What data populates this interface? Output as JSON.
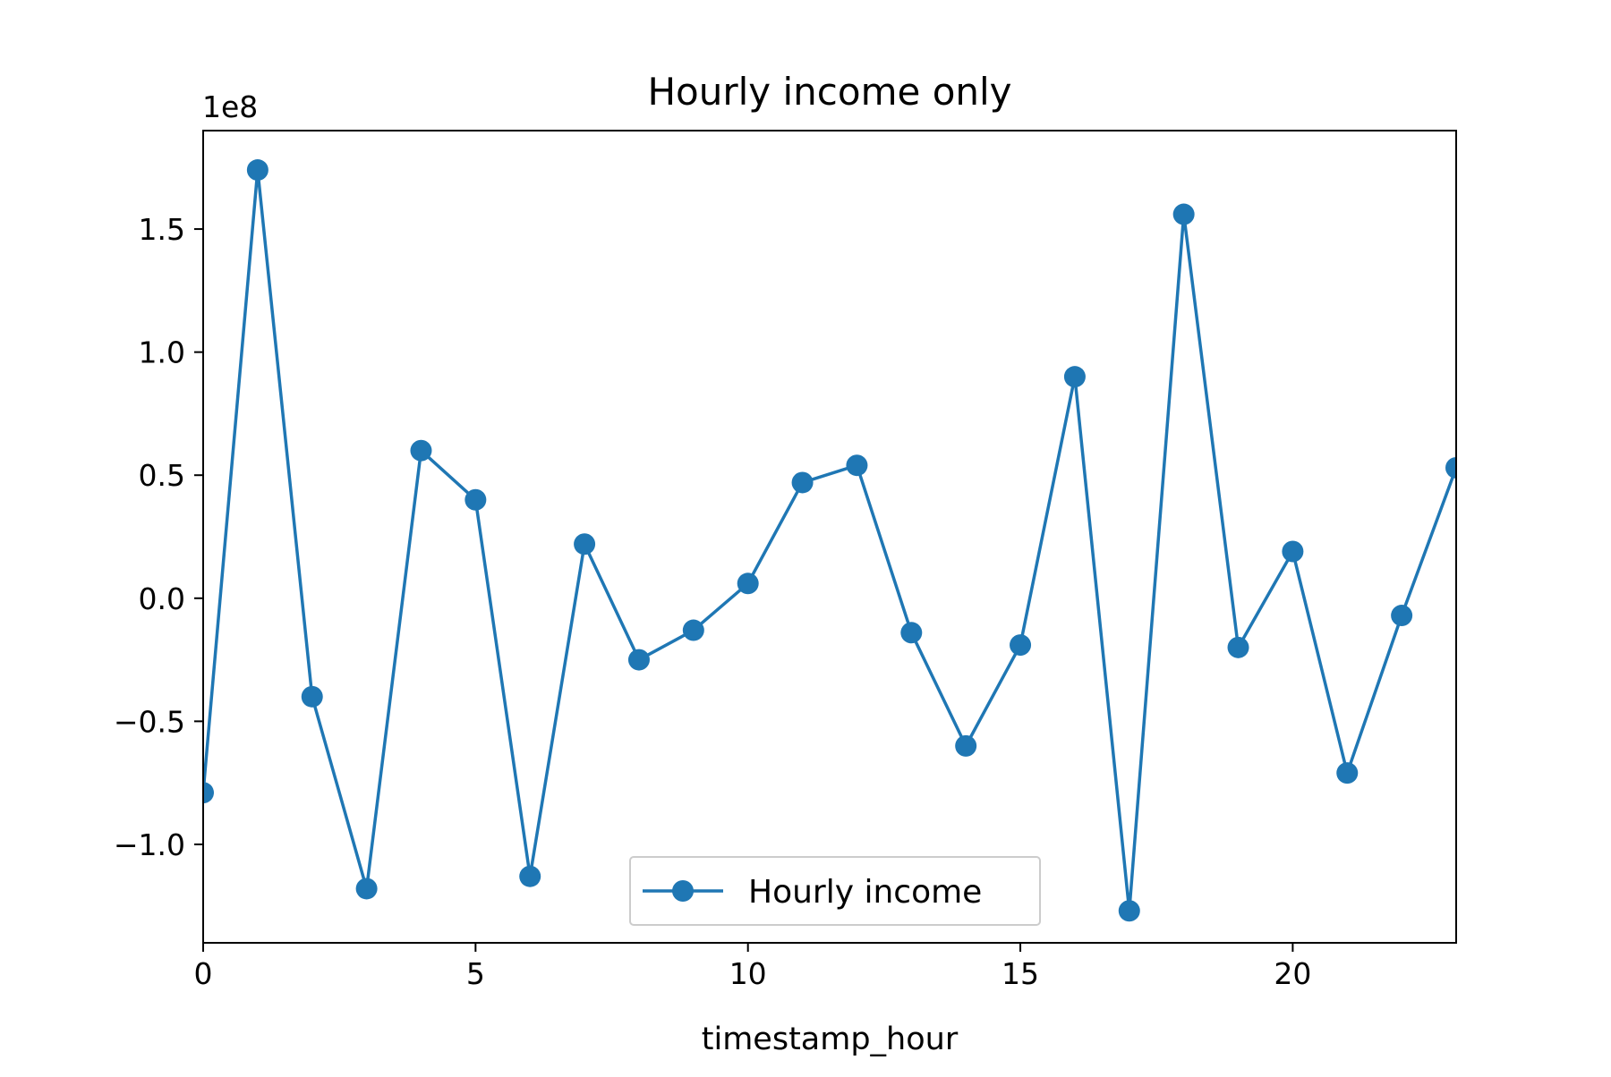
{
  "chart_data": {
    "type": "line",
    "title": "Hourly income only",
    "xlabel": "timestamp_hour",
    "ylabel": "",
    "y_offset_label": "1e8",
    "xlim": [
      0,
      23
    ],
    "ylim": [
      -1.4,
      1.9
    ],
    "y_scale_factor": 100000000,
    "x_ticks": [
      0,
      5,
      10,
      15,
      20
    ],
    "x_tick_labels": [
      "0",
      "5",
      "10",
      "15",
      "20"
    ],
    "y_ticks": [
      -1.0,
      -0.5,
      0.0,
      0.5,
      1.0,
      1.5
    ],
    "y_tick_labels": [
      "−1.0",
      "−0.5",
      "0.0",
      "0.5",
      "1.0",
      "1.5"
    ],
    "grid": false,
    "legend_position": "lower-center",
    "series": [
      {
        "name": "Hourly income",
        "color": "#1f77b4",
        "marker": "circle",
        "x": [
          0,
          1,
          2,
          3,
          4,
          5,
          6,
          7,
          8,
          9,
          10,
          11,
          12,
          13,
          14,
          15,
          16,
          17,
          18,
          19,
          20,
          21,
          22,
          23
        ],
        "y": [
          -0.79,
          1.74,
          -0.4,
          -1.18,
          0.6,
          0.4,
          -1.13,
          0.22,
          -0.25,
          -0.13,
          0.06,
          0.47,
          0.54,
          -0.14,
          -0.6,
          -0.19,
          0.9,
          -1.27,
          1.56,
          -0.2,
          0.19,
          -0.71,
          -0.07,
          0.53
        ]
      }
    ]
  }
}
